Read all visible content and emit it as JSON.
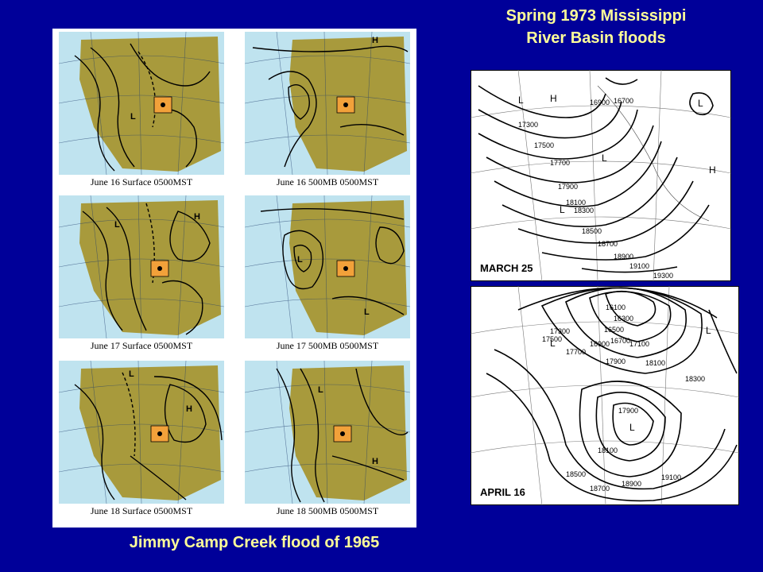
{
  "slide": {
    "title_line1": "Spring 1973 Mississippi",
    "title_line2": "River Basin floods",
    "caption": "Jimmy Camp Creek flood  of 1965"
  },
  "left_maps": [
    {
      "label": "June 16 Surface 0500MST"
    },
    {
      "label": "June 16 500MB 0500MST"
    },
    {
      "label": "June 17 Surface 0500MST"
    },
    {
      "label": "June 17 500MB 0500MST"
    },
    {
      "label": "June 18 Surface 0500MST"
    },
    {
      "label": "June 18 500MB 0500MST"
    }
  ],
  "right_maps": [
    {
      "date": "MARCH 25"
    },
    {
      "date": "APRIL 16"
    }
  ],
  "colors": {
    "background": "#000099",
    "title_text": "#ffff99",
    "land": "#a89a3c",
    "water": "#bfe3ef",
    "highlight": "#f2a13a"
  }
}
